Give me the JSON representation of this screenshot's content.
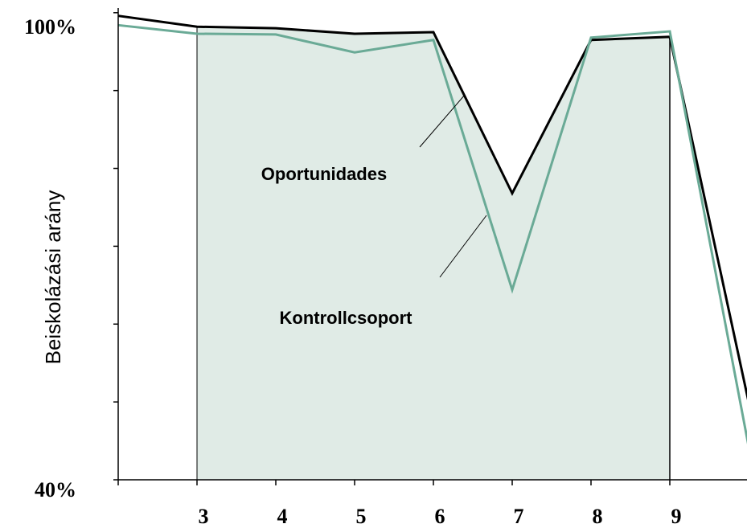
{
  "chart_data": {
    "type": "line",
    "y_label": "Beiskolázási arány",
    "categories": [
      null,
      "3",
      "4",
      "5",
      "6",
      "7",
      "8",
      "9",
      null
    ],
    "series": [
      {
        "name": "Oportunidades",
        "color": "#000000",
        "values": [
          99.6,
          98.2,
          98.0,
          97.3,
          97.5,
          76.8,
          96.5,
          96.9,
          50.0
        ]
      },
      {
        "name": "Kontrollcsoport",
        "color": "#6aaa96",
        "values": [
          98.4,
          97.3,
          97.2,
          94.9,
          96.5,
          64.4,
          96.8,
          97.6,
          44.3
        ]
      }
    ],
    "ylim": [
      40,
      100.6
    ],
    "yticks": [
      {
        "value": 40,
        "label": "40%"
      },
      {
        "value": 100,
        "label": "100%"
      }
    ],
    "yminor_ticks": [
      50,
      60,
      70,
      80,
      90
    ],
    "shade_color": "#e0ebe6"
  }
}
